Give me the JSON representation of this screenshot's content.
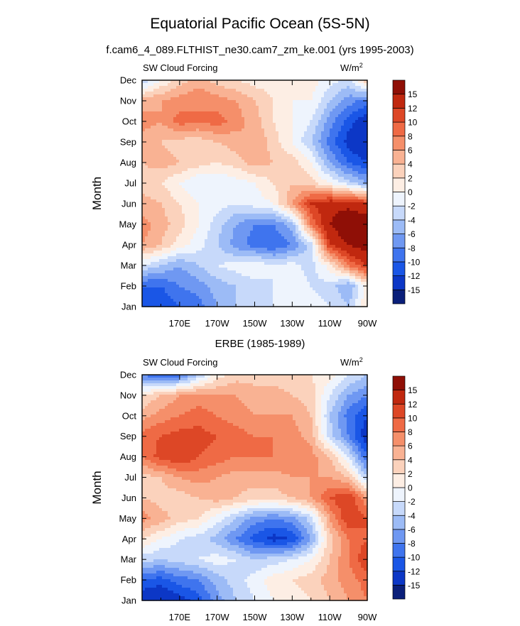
{
  "title": "Equatorial Pacific Ocean (5S-5N)",
  "subtitle": "f.cam6_4_089.FLTHIST_ne30.cam7_zm_ke.001 (yrs 1995-2003)",
  "colors": {
    "levels_hex": [
      "#0a1f7a",
      "#0c37c6",
      "#1a56e6",
      "#3f74ee",
      "#6f98f2",
      "#9cbbf6",
      "#c7d9fa",
      "#eef4fd",
      "#fdeee4",
      "#fbd2bc",
      "#f9b293",
      "#f58f6a",
      "#ef6a45",
      "#dd4726",
      "#c0280f",
      "#8f0f06"
    ]
  },
  "chart_data": [
    {
      "type": "heatmap",
      "title": "",
      "panel_label": "SW Cloud Forcing",
      "units_label": "W/m",
      "units_sup": "2",
      "ylabel": "Month",
      "xlabel": "",
      "y_ticks": [
        "Jan",
        "Feb",
        "Mar",
        "Apr",
        "May",
        "Jun",
        "Jul",
        "Aug",
        "Sep",
        "Oct",
        "Nov",
        "Dec"
      ],
      "x_ticks": [
        "170E",
        "170W",
        "150W",
        "130W",
        "110W",
        "90W"
      ],
      "x_tick_lon": [
        170,
        190,
        210,
        230,
        250,
        270
      ],
      "x_range_lon": [
        150,
        270
      ],
      "colorbar_labels": [
        "-15",
        "-12",
        "-10",
        "-8",
        "-6",
        "-4",
        "-2",
        "0",
        "2",
        "4",
        "6",
        "8",
        "10",
        "12",
        "15"
      ],
      "contour_levels": [
        -15,
        -12,
        -10,
        -8,
        -6,
        -4,
        -2,
        0,
        2,
        4,
        6,
        8,
        10,
        12,
        15
      ],
      "x_lon": [
        150,
        160,
        170,
        180,
        190,
        200,
        210,
        220,
        230,
        240,
        250,
        260,
        270
      ],
      "z": [
        [
          -10,
          -12,
          -10,
          -9,
          -6,
          -4,
          -3,
          -2,
          -1,
          -1,
          -2,
          -4,
          2
        ],
        [
          -10,
          -10,
          -8,
          -7,
          -5,
          -4,
          -3,
          -2,
          -1,
          -2,
          -3,
          -6,
          1
        ],
        [
          -2,
          -4,
          -6,
          -4,
          -2,
          -1,
          0,
          -2,
          -1,
          -3,
          1,
          8,
          12
        ],
        [
          6,
          4,
          1,
          -1,
          -4,
          -7,
          -9,
          -10,
          -8,
          -3,
          12,
          15,
          17
        ],
        [
          7,
          5,
          3,
          0,
          -3,
          -6,
          -8,
          -8,
          -5,
          8,
          15,
          18,
          18
        ],
        [
          5,
          4,
          2,
          0,
          -1,
          -2,
          -1,
          0,
          6,
          12,
          14,
          14,
          12
        ],
        [
          3,
          2,
          0,
          -2,
          -2,
          -1,
          0,
          2,
          4,
          3,
          0,
          -3,
          -6
        ],
        [
          4,
          5,
          4,
          3,
          2,
          3,
          5,
          4,
          3,
          0,
          -6,
          -10,
          -12
        ],
        [
          5,
          4,
          3,
          3,
          4,
          5,
          6,
          3,
          0,
          -4,
          -9,
          -13,
          -15
        ],
        [
          7,
          6,
          9,
          8,
          9,
          7,
          5,
          2,
          0,
          -2,
          -7,
          -11,
          -14
        ],
        [
          5,
          6,
          7,
          8,
          7,
          6,
          4,
          2,
          0,
          0,
          -4,
          -7,
          -9
        ],
        [
          -4,
          0,
          3,
          5,
          3,
          2,
          1,
          1,
          1,
          1,
          -1,
          -3,
          4
        ]
      ]
    },
    {
      "type": "heatmap",
      "title": "ERBE (1985-1989)",
      "panel_label": "SW Cloud Forcing",
      "units_label": "W/m",
      "units_sup": "2",
      "ylabel": "Month",
      "xlabel": "",
      "y_ticks": [
        "Jan",
        "Feb",
        "Mar",
        "Apr",
        "May",
        "Jun",
        "Jul",
        "Aug",
        "Sep",
        "Oct",
        "Nov",
        "Dec"
      ],
      "x_ticks": [
        "170E",
        "170W",
        "150W",
        "130W",
        "110W",
        "90W"
      ],
      "x_tick_lon": [
        170,
        190,
        210,
        230,
        250,
        270
      ],
      "x_range_lon": [
        150,
        270
      ],
      "colorbar_labels": [
        "-15",
        "-12",
        "-10",
        "-8",
        "-6",
        "-4",
        "-2",
        "0",
        "2",
        "4",
        "6",
        "8",
        "10",
        "12",
        "15"
      ],
      "contour_levels": [
        -15,
        -12,
        -10,
        -8,
        -6,
        -4,
        -2,
        0,
        2,
        4,
        6,
        8,
        10,
        12,
        15
      ],
      "x_lon": [
        150,
        160,
        170,
        180,
        190,
        200,
        210,
        220,
        230,
        240,
        250,
        260,
        270
      ],
      "z": [
        [
          -14,
          -15,
          -13,
          -11,
          -7,
          -4,
          -2,
          0,
          1,
          2,
          4,
          6,
          8
        ],
        [
          -10,
          -11,
          -9,
          -8,
          -5,
          -3,
          -1,
          1,
          2,
          3,
          5,
          7,
          9
        ],
        [
          -3,
          -4,
          -3,
          -2,
          -1,
          -2,
          -4,
          -3,
          -2,
          0,
          4,
          8,
          12
        ],
        [
          2,
          0,
          -2,
          -3,
          -5,
          -8,
          -11,
          -13,
          -12,
          -6,
          3,
          8,
          10
        ],
        [
          7,
          5,
          3,
          2,
          -1,
          -4,
          -7,
          -8,
          -7,
          -3,
          6,
          12,
          10
        ],
        [
          4,
          3,
          3,
          4,
          5,
          4,
          3,
          3,
          4,
          6,
          10,
          12,
          6
        ],
        [
          3,
          4,
          6,
          7,
          6,
          5,
          5,
          5,
          6,
          6,
          6,
          4,
          -4
        ],
        [
          8,
          11,
          12,
          10,
          9,
          8,
          8,
          8,
          8,
          7,
          4,
          -2,
          -10
        ],
        [
          9,
          10,
          11,
          11,
          10,
          9,
          8,
          8,
          7,
          5,
          -3,
          -8,
          -14
        ],
        [
          5,
          7,
          8,
          9,
          8,
          7,
          6,
          6,
          6,
          4,
          -4,
          -9,
          -12
        ],
        [
          2,
          4,
          6,
          7,
          6,
          6,
          5,
          5,
          4,
          3,
          -2,
          -6,
          -8
        ],
        [
          -8,
          -11,
          -9,
          -4,
          1,
          3,
          3,
          3,
          2,
          2,
          1,
          -2,
          -4
        ]
      ]
    }
  ]
}
